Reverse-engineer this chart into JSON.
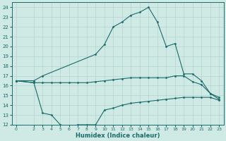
{
  "xlabel": "Humidex (Indice chaleur)",
  "bg_color": "#cfe9e5",
  "grid_color": "#b8d8d4",
  "line_color": "#1a6b6b",
  "xlim": [
    -0.5,
    23.5
  ],
  "ylim": [
    12,
    24.5
  ],
  "xticks": [
    0,
    2,
    3,
    4,
    5,
    6,
    7,
    8,
    9,
    10,
    11,
    12,
    13,
    14,
    15,
    16,
    17,
    18,
    19,
    20,
    21,
    22,
    23
  ],
  "yticks": [
    12,
    13,
    14,
    15,
    16,
    17,
    18,
    19,
    20,
    21,
    22,
    23,
    24
  ],
  "lines": [
    {
      "x": [
        0,
        2,
        3,
        9,
        10,
        11,
        12,
        13,
        14,
        15,
        16,
        17,
        18,
        19,
        20,
        21,
        22,
        23
      ],
      "y": [
        16.5,
        16.5,
        17.0,
        19.2,
        20.2,
        22.0,
        22.5,
        23.2,
        23.5,
        24.0,
        22.5,
        20.0,
        20.3,
        17.2,
        17.2,
        16.5,
        15.2,
        14.6
      ]
    },
    {
      "x": [
        0,
        2,
        3,
        4,
        5,
        6,
        7,
        8,
        9,
        10,
        11,
        12,
        13,
        14,
        15,
        16,
        17,
        18,
        19,
        20,
        21,
        22,
        23
      ],
      "y": [
        16.5,
        16.3,
        16.3,
        16.3,
        16.3,
        16.3,
        16.3,
        16.3,
        16.4,
        16.5,
        16.6,
        16.7,
        16.8,
        16.8,
        16.8,
        16.8,
        16.8,
        17.0,
        17.0,
        16.4,
        16.1,
        15.2,
        14.8
      ]
    },
    {
      "x": [
        0,
        2,
        3,
        4,
        5,
        6,
        7,
        8,
        9,
        10,
        11,
        12,
        13,
        14,
        15,
        16,
        17,
        18,
        19,
        20,
        21,
        22,
        23
      ],
      "y": [
        16.5,
        16.3,
        13.2,
        13.0,
        12.0,
        11.8,
        12.0,
        12.0,
        12.0,
        13.5,
        13.7,
        14.0,
        14.2,
        14.3,
        14.4,
        14.5,
        14.6,
        14.7,
        14.8,
        14.8,
        14.8,
        14.8,
        14.5
      ]
    }
  ]
}
